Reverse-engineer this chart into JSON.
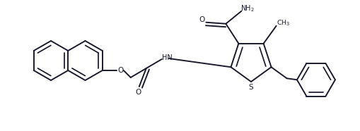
{
  "bg_color": "#ffffff",
  "line_color": "#1a1a2e",
  "line_width": 1.4,
  "figsize": [
    5.1,
    1.86
  ],
  "dpi": 100,
  "xlim": [
    0,
    5.1
  ],
  "ylim": [
    0,
    1.86
  ]
}
